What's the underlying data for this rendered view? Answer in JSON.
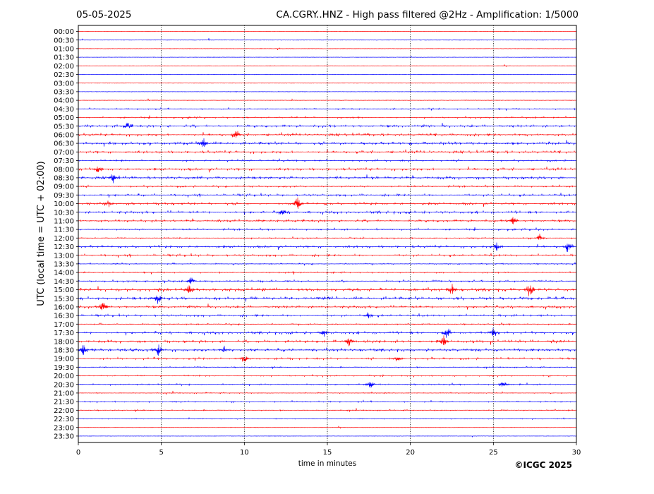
{
  "header": {
    "date": "05-05-2025",
    "station_title": "CA.CGRY..HNZ - High pass filtered @2Hz - Amplification: 1/5000"
  },
  "copyright": "©ICGC 2025",
  "chart_data": {
    "type": "helicorder",
    "title": "CA.CGRY..HNZ - High pass filtered @2Hz - Amplification: 1/5000",
    "date": "05-05-2025",
    "xlabel": "time in minutes",
    "ylabel": "UTC (local time = UTC + 02:00)",
    "xlim": [
      0,
      30
    ],
    "x_ticks": [
      0,
      5,
      10,
      15,
      20,
      25,
      30
    ],
    "vertical_grid_minutes": [
      5,
      10,
      15,
      20,
      25
    ],
    "trace_colors": [
      "#ff0000",
      "#0000ff"
    ],
    "row_labels": [
      "00:00",
      "00:30",
      "01:00",
      "01:30",
      "02:00",
      "02:30",
      "03:00",
      "03:30",
      "04:00",
      "04:30",
      "05:00",
      "05:30",
      "06:00",
      "06:30",
      "07:00",
      "07:30",
      "08:00",
      "08:30",
      "09:00",
      "09:30",
      "10:00",
      "10:30",
      "11:00",
      "11:30",
      "12:00",
      "12:30",
      "13:00",
      "13:30",
      "14:00",
      "14:30",
      "15:00",
      "15:30",
      "16:00",
      "16:30",
      "17:00",
      "17:30",
      "18:00",
      "18:30",
      "19:00",
      "19:30",
      "20:00",
      "20:30",
      "21:00",
      "21:30",
      "22:00",
      "22:30",
      "23:00",
      "23:30"
    ],
    "row_activity": [
      0.05,
      0.08,
      0.05,
      0.05,
      0.05,
      0.08,
      0.05,
      0.12,
      0.1,
      0.4,
      0.45,
      0.7,
      0.7,
      0.8,
      0.7,
      0.5,
      0.7,
      0.8,
      0.5,
      0.6,
      0.7,
      0.7,
      0.7,
      0.5,
      0.4,
      0.7,
      0.6,
      0.4,
      0.4,
      0.5,
      0.9,
      0.9,
      0.7,
      0.6,
      0.4,
      0.7,
      0.8,
      0.8,
      0.6,
      0.3,
      0.4,
      0.4,
      0.3,
      0.4,
      0.3,
      0.2,
      0.05,
      0.05
    ],
    "events": [
      {
        "row": 11,
        "minute": 3.0,
        "amplitude": 0.9
      },
      {
        "row": 12,
        "minute": 9.5,
        "amplitude": 0.8
      },
      {
        "row": 13,
        "minute": 7.5,
        "amplitude": 1.2
      },
      {
        "row": 16,
        "minute": 1.2,
        "amplitude": 0.6
      },
      {
        "row": 17,
        "minute": 2.1,
        "amplitude": 0.7
      },
      {
        "row": 20,
        "minute": 13.2,
        "amplitude": 1.3
      },
      {
        "row": 20,
        "minute": 1.8,
        "amplitude": 0.6
      },
      {
        "row": 21,
        "minute": 12.3,
        "amplitude": 0.6
      },
      {
        "row": 22,
        "minute": 26.2,
        "amplitude": 0.7
      },
      {
        "row": 24,
        "minute": 27.8,
        "amplitude": 0.8
      },
      {
        "row": 25,
        "minute": 29.5,
        "amplitude": 1.0
      },
      {
        "row": 25,
        "minute": 25.2,
        "amplitude": 0.8
      },
      {
        "row": 29,
        "minute": 6.8,
        "amplitude": 0.7
      },
      {
        "row": 30,
        "minute": 22.5,
        "amplitude": 1.2
      },
      {
        "row": 30,
        "minute": 27.2,
        "amplitude": 1.4
      },
      {
        "row": 30,
        "minute": 6.7,
        "amplitude": 0.9
      },
      {
        "row": 31,
        "minute": 4.8,
        "amplitude": 1.0
      },
      {
        "row": 32,
        "minute": 1.5,
        "amplitude": 1.0
      },
      {
        "row": 33,
        "minute": 17.5,
        "amplitude": 0.6
      },
      {
        "row": 35,
        "minute": 22.2,
        "amplitude": 1.3
      },
      {
        "row": 35,
        "minute": 25.0,
        "amplitude": 0.9
      },
      {
        "row": 35,
        "minute": 14.8,
        "amplitude": 0.6
      },
      {
        "row": 36,
        "minute": 22.0,
        "amplitude": 1.0
      },
      {
        "row": 36,
        "minute": 16.3,
        "amplitude": 0.7
      },
      {
        "row": 37,
        "minute": 0.3,
        "amplitude": 1.1
      },
      {
        "row": 37,
        "minute": 4.8,
        "amplitude": 1.0
      },
      {
        "row": 37,
        "minute": 8.8,
        "amplitude": 0.7
      },
      {
        "row": 38,
        "minute": 10.0,
        "amplitude": 0.8
      },
      {
        "row": 38,
        "minute": 19.2,
        "amplitude": 0.6
      },
      {
        "row": 41,
        "minute": 17.6,
        "amplitude": 0.7
      },
      {
        "row": 41,
        "minute": 25.6,
        "amplitude": 0.7
      }
    ],
    "grid": true
  }
}
